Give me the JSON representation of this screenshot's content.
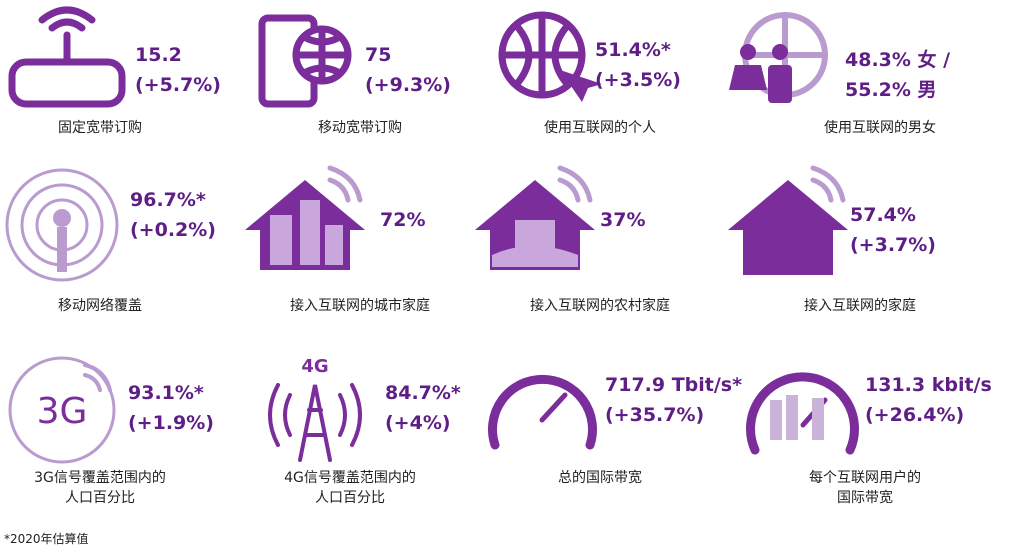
{
  "items": [
    {
      "value": "15.2",
      "change": "(+5.7%)",
      "label": [
        "固定宽带订购"
      ]
    },
    {
      "value": "75",
      "change": "(+9.3%)",
      "label": [
        "移动宽带订购"
      ]
    },
    {
      "value": "51.4%*",
      "change": "(+3.5%)",
      "label": [
        "使用互联网的个人"
      ]
    },
    {
      "value": "48.3% 女 / 55.2% 男",
      "label": [
        "使用互联网的男女"
      ]
    },
    {
      "value": "96.7%*",
      "change": "(+0.2%)",
      "label": [
        "移动网络覆盖"
      ]
    },
    {
      "value": "72%",
      "label": [
        "接入互联网的城市家庭"
      ]
    },
    {
      "value": "37%",
      "label": [
        "接入互联网的农村家庭"
      ]
    },
    {
      "value": "57.4%",
      "change": "(+3.7%)",
      "label": [
        "接入互联网的家庭"
      ]
    },
    {
      "value": "93.1%*",
      "change": "(+1.9%)",
      "label": [
        "3G信号覆盖范围内的",
        "人口百分比"
      ],
      "icon_text": "3G"
    },
    {
      "value": "84.7%*",
      "change": "(+4%)",
      "label": [
        "4G信号覆盖范围内的",
        "人口百分比"
      ],
      "icon_text": "4G"
    },
    {
      "value": "717.9 Tbit/s*",
      "change": "(+35.7%)",
      "label": [
        "总的国际带宽"
      ]
    },
    {
      "value": "131.3 kbit/s",
      "change": "(+26.4%)",
      "label": [
        "每个互联网用户的",
        "国际带宽"
      ]
    }
  ],
  "footnote": "*2020年估算值"
}
